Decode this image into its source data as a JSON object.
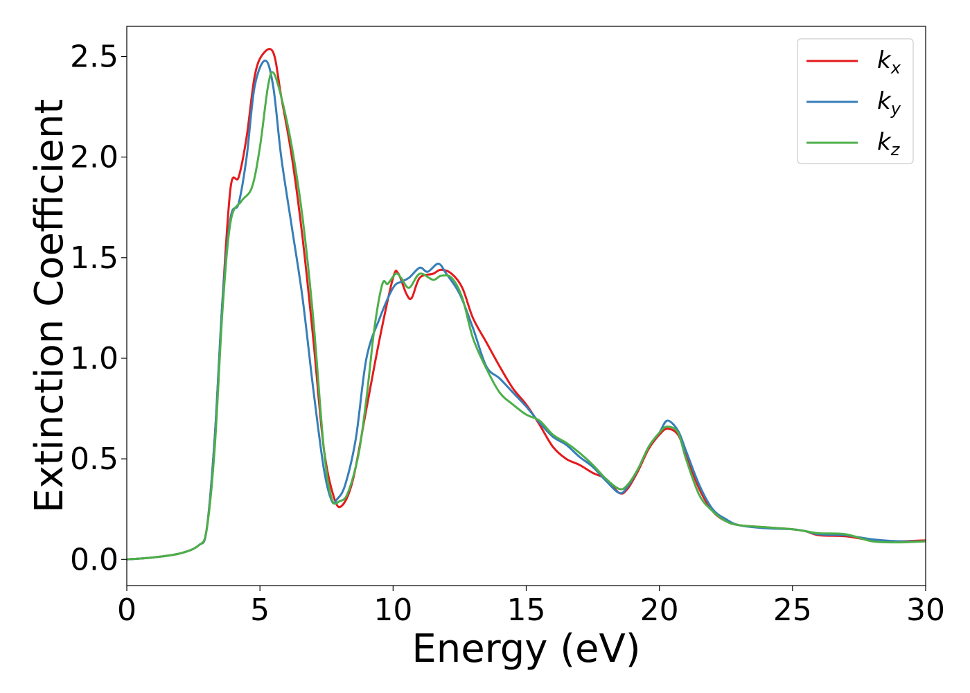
{
  "chart_data": {
    "type": "line",
    "xlabel": "Energy (eV)",
    "ylabel": "Extinction Coefficient",
    "xlim": [
      0,
      30
    ],
    "ylim": [
      -0.13,
      2.65
    ],
    "xticks": [
      0,
      5,
      10,
      15,
      20,
      25,
      30
    ],
    "xtick_labels": [
      "0",
      "5",
      "10",
      "15",
      "20",
      "25",
      "30"
    ],
    "yticks": [
      0.0,
      0.5,
      1.0,
      1.5,
      2.0,
      2.5
    ],
    "ytick_labels": [
      "0.0",
      "0.5",
      "1.0",
      "1.5",
      "2.0",
      "2.5"
    ],
    "grid": false,
    "legend_position": "top-right",
    "series": [
      {
        "name": "k_x",
        "label_base": "k",
        "label_sub": "x",
        "color": "#e41a1c",
        "points": [
          [
            0,
            0
          ],
          [
            1,
            0.01
          ],
          [
            2,
            0.03
          ],
          [
            2.7,
            0.07
          ],
          [
            3.0,
            0.15
          ],
          [
            3.3,
            0.6
          ],
          [
            3.6,
            1.3
          ],
          [
            3.9,
            1.85
          ],
          [
            4.2,
            1.9
          ],
          [
            4.5,
            2.1
          ],
          [
            4.8,
            2.4
          ],
          [
            5.1,
            2.51
          ],
          [
            5.5,
            2.52
          ],
          [
            5.8,
            2.3
          ],
          [
            6.2,
            2.0
          ],
          [
            6.6,
            1.6
          ],
          [
            7.0,
            1.1
          ],
          [
            7.4,
            0.55
          ],
          [
            7.8,
            0.3
          ],
          [
            8.1,
            0.27
          ],
          [
            8.5,
            0.4
          ],
          [
            9.0,
            0.75
          ],
          [
            9.5,
            1.1
          ],
          [
            10.0,
            1.4
          ],
          [
            10.2,
            1.42
          ],
          [
            10.5,
            1.32
          ],
          [
            10.7,
            1.3
          ],
          [
            11.0,
            1.4
          ],
          [
            11.5,
            1.42
          ],
          [
            11.8,
            1.44
          ],
          [
            12.2,
            1.42
          ],
          [
            12.6,
            1.35
          ],
          [
            13.0,
            1.2
          ],
          [
            13.5,
            1.08
          ],
          [
            14.0,
            0.96
          ],
          [
            14.5,
            0.85
          ],
          [
            15.0,
            0.77
          ],
          [
            15.5,
            0.67
          ],
          [
            16.0,
            0.56
          ],
          [
            16.5,
            0.5
          ],
          [
            17.0,
            0.47
          ],
          [
            17.5,
            0.43
          ],
          [
            18.0,
            0.4
          ],
          [
            18.5,
            0.33
          ],
          [
            18.8,
            0.35
          ],
          [
            19.2,
            0.44
          ],
          [
            19.6,
            0.55
          ],
          [
            20.0,
            0.62
          ],
          [
            20.3,
            0.65
          ],
          [
            20.7,
            0.62
          ],
          [
            21.0,
            0.52
          ],
          [
            21.5,
            0.35
          ],
          [
            22.0,
            0.24
          ],
          [
            22.5,
            0.19
          ],
          [
            23.0,
            0.17
          ],
          [
            24.0,
            0.16
          ],
          [
            25.0,
            0.15
          ],
          [
            25.5,
            0.14
          ],
          [
            26.0,
            0.12
          ],
          [
            27.0,
            0.115
          ],
          [
            28.0,
            0.095
          ],
          [
            29.0,
            0.09
          ],
          [
            30.0,
            0.095
          ]
        ]
      },
      {
        "name": "k_y",
        "label_base": "k",
        "label_sub": "y",
        "color": "#377eb8",
        "points": [
          [
            0,
            0
          ],
          [
            1,
            0.01
          ],
          [
            2,
            0.03
          ],
          [
            2.7,
            0.07
          ],
          [
            3.0,
            0.15
          ],
          [
            3.3,
            0.6
          ],
          [
            3.6,
            1.3
          ],
          [
            3.9,
            1.7
          ],
          [
            4.2,
            1.77
          ],
          [
            4.5,
            2.0
          ],
          [
            4.8,
            2.35
          ],
          [
            5.2,
            2.48
          ],
          [
            5.5,
            2.35
          ],
          [
            5.8,
            2.0
          ],
          [
            6.2,
            1.65
          ],
          [
            6.6,
            1.3
          ],
          [
            7.0,
            0.85
          ],
          [
            7.4,
            0.45
          ],
          [
            7.7,
            0.29
          ],
          [
            7.9,
            0.3
          ],
          [
            8.2,
            0.37
          ],
          [
            8.6,
            0.6
          ],
          [
            9.0,
            1.0
          ],
          [
            9.5,
            1.2
          ],
          [
            10.0,
            1.35
          ],
          [
            10.3,
            1.38
          ],
          [
            10.6,
            1.4
          ],
          [
            11.0,
            1.45
          ],
          [
            11.3,
            1.43
          ],
          [
            11.7,
            1.47
          ],
          [
            12.0,
            1.42
          ],
          [
            12.5,
            1.32
          ],
          [
            13.0,
            1.15
          ],
          [
            13.5,
            0.96
          ],
          [
            14.0,
            0.9
          ],
          [
            14.5,
            0.83
          ],
          [
            15.0,
            0.76
          ],
          [
            15.5,
            0.68
          ],
          [
            16.0,
            0.61
          ],
          [
            16.5,
            0.57
          ],
          [
            17.0,
            0.51
          ],
          [
            17.5,
            0.46
          ],
          [
            18.0,
            0.39
          ],
          [
            18.5,
            0.33
          ],
          [
            18.8,
            0.36
          ],
          [
            19.2,
            0.45
          ],
          [
            19.6,
            0.56
          ],
          [
            20.0,
            0.63
          ],
          [
            20.3,
            0.69
          ],
          [
            20.7,
            0.64
          ],
          [
            21.0,
            0.54
          ],
          [
            21.5,
            0.37
          ],
          [
            22.0,
            0.25
          ],
          [
            22.5,
            0.2
          ],
          [
            23.0,
            0.17
          ],
          [
            24.0,
            0.155
          ],
          [
            25.0,
            0.15
          ],
          [
            25.5,
            0.14
          ],
          [
            26.0,
            0.125
          ],
          [
            27.0,
            0.12
          ],
          [
            28.0,
            0.1
          ],
          [
            29.0,
            0.09
          ],
          [
            30.0,
            0.09
          ]
        ]
      },
      {
        "name": "k_z",
        "label_base": "k",
        "label_sub": "z",
        "color": "#4daf4a",
        "points": [
          [
            0,
            0
          ],
          [
            1,
            0.01
          ],
          [
            2,
            0.03
          ],
          [
            2.7,
            0.07
          ],
          [
            3.0,
            0.15
          ],
          [
            3.3,
            0.55
          ],
          [
            3.6,
            1.25
          ],
          [
            3.9,
            1.68
          ],
          [
            4.3,
            1.78
          ],
          [
            4.7,
            1.85
          ],
          [
            5.0,
            2.05
          ],
          [
            5.3,
            2.35
          ],
          [
            5.5,
            2.42
          ],
          [
            5.8,
            2.3
          ],
          [
            6.2,
            2.05
          ],
          [
            6.6,
            1.7
          ],
          [
            7.0,
            1.2
          ],
          [
            7.4,
            0.55
          ],
          [
            7.7,
            0.3
          ],
          [
            8.0,
            0.29
          ],
          [
            8.3,
            0.33
          ],
          [
            8.7,
            0.52
          ],
          [
            9.0,
            0.8
          ],
          [
            9.3,
            1.15
          ],
          [
            9.6,
            1.37
          ],
          [
            9.8,
            1.37
          ],
          [
            10.1,
            1.42
          ],
          [
            10.3,
            1.4
          ],
          [
            10.6,
            1.35
          ],
          [
            11.0,
            1.42
          ],
          [
            11.5,
            1.39
          ],
          [
            11.8,
            1.41
          ],
          [
            12.2,
            1.4
          ],
          [
            12.6,
            1.3
          ],
          [
            13.0,
            1.1
          ],
          [
            13.5,
            0.95
          ],
          [
            14.0,
            0.83
          ],
          [
            14.5,
            0.77
          ],
          [
            15.0,
            0.72
          ],
          [
            15.5,
            0.69
          ],
          [
            16.0,
            0.62
          ],
          [
            16.5,
            0.58
          ],
          [
            17.0,
            0.53
          ],
          [
            17.5,
            0.47
          ],
          [
            18.0,
            0.4
          ],
          [
            18.5,
            0.35
          ],
          [
            18.8,
            0.37
          ],
          [
            19.2,
            0.45
          ],
          [
            19.6,
            0.56
          ],
          [
            20.0,
            0.63
          ],
          [
            20.3,
            0.66
          ],
          [
            20.7,
            0.63
          ],
          [
            21.0,
            0.5
          ],
          [
            21.5,
            0.32
          ],
          [
            22.0,
            0.24
          ],
          [
            22.5,
            0.19
          ],
          [
            23.0,
            0.17
          ],
          [
            24.0,
            0.16
          ],
          [
            25.0,
            0.15
          ],
          [
            25.5,
            0.14
          ],
          [
            26.0,
            0.13
          ],
          [
            27.0,
            0.125
          ],
          [
            28.0,
            0.09
          ],
          [
            29.0,
            0.085
          ],
          [
            30.0,
            0.09
          ]
        ]
      }
    ]
  }
}
